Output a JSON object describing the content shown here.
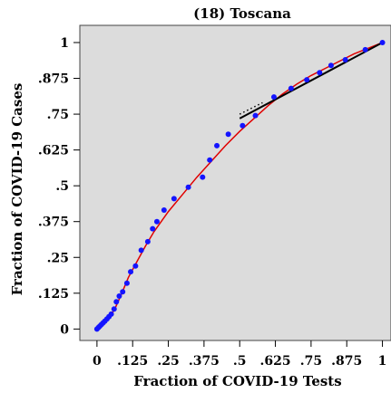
{
  "chart_data": {
    "type": "scatter",
    "title": "(18) Toscana",
    "xlabel": "Fraction of COVID-19 Tests",
    "ylabel": "Fraction of COVID-19 Cases",
    "xlim": [
      -0.06,
      1.03
    ],
    "ylim": [
      -0.04,
      1.06
    ],
    "x_ticks": [
      {
        "value": 0,
        "label": "0"
      },
      {
        "value": 0.125,
        "label": ".125"
      },
      {
        "value": 0.25,
        "label": ".25"
      },
      {
        "value": 0.375,
        "label": ".375"
      },
      {
        "value": 0.5,
        "label": ".5"
      },
      {
        "value": 0.625,
        "label": ".625"
      },
      {
        "value": 0.75,
        "label": ".75"
      },
      {
        "value": 0.875,
        "label": ".875"
      },
      {
        "value": 1,
        "label": "1"
      }
    ],
    "y_ticks": [
      {
        "value": 0,
        "label": "0"
      },
      {
        "value": 0.125,
        "label": ".125"
      },
      {
        "value": 0.25,
        "label": ".25"
      },
      {
        "value": 0.375,
        "label": ".375"
      },
      {
        "value": 0.5,
        "label": ".5"
      },
      {
        "value": 0.625,
        "label": ".625"
      },
      {
        "value": 0.75,
        "label": ".75"
      },
      {
        "value": 0.875,
        "label": ".875"
      },
      {
        "value": 1,
        "label": "1"
      }
    ],
    "grid": false,
    "background": "#dcdcdc",
    "points": [
      {
        "x": 0.0,
        "y": 0.0
      },
      {
        "x": 0.005,
        "y": 0.005
      },
      {
        "x": 0.01,
        "y": 0.01
      },
      {
        "x": 0.016,
        "y": 0.016
      },
      {
        "x": 0.022,
        "y": 0.022
      },
      {
        "x": 0.028,
        "y": 0.028
      },
      {
        "x": 0.035,
        "y": 0.035
      },
      {
        "x": 0.042,
        "y": 0.043
      },
      {
        "x": 0.05,
        "y": 0.052
      },
      {
        "x": 0.06,
        "y": 0.07
      },
      {
        "x": 0.068,
        "y": 0.095
      },
      {
        "x": 0.078,
        "y": 0.115
      },
      {
        "x": 0.09,
        "y": 0.13
      },
      {
        "x": 0.105,
        "y": 0.16
      },
      {
        "x": 0.118,
        "y": 0.2
      },
      {
        "x": 0.135,
        "y": 0.22
      },
      {
        "x": 0.155,
        "y": 0.275
      },
      {
        "x": 0.178,
        "y": 0.305
      },
      {
        "x": 0.195,
        "y": 0.35
      },
      {
        "x": 0.21,
        "y": 0.375
      },
      {
        "x": 0.235,
        "y": 0.415
      },
      {
        "x": 0.27,
        "y": 0.455
      },
      {
        "x": 0.32,
        "y": 0.495
      },
      {
        "x": 0.37,
        "y": 0.53
      },
      {
        "x": 0.395,
        "y": 0.59
      },
      {
        "x": 0.42,
        "y": 0.64
      },
      {
        "x": 0.46,
        "y": 0.68
      },
      {
        "x": 0.51,
        "y": 0.71
      },
      {
        "x": 0.555,
        "y": 0.745
      },
      {
        "x": 0.62,
        "y": 0.81
      },
      {
        "x": 0.68,
        "y": 0.84
      },
      {
        "x": 0.735,
        "y": 0.87
      },
      {
        "x": 0.78,
        "y": 0.895
      },
      {
        "x": 0.82,
        "y": 0.92
      },
      {
        "x": 0.87,
        "y": 0.94
      },
      {
        "x": 0.94,
        "y": 0.975
      },
      {
        "x": 1.0,
        "y": 1.0
      }
    ],
    "fit_curve": [
      [
        0.0,
        0.0
      ],
      [
        0.03,
        0.03
      ],
      [
        0.06,
        0.065
      ],
      [
        0.085,
        0.12
      ],
      [
        0.11,
        0.18
      ],
      [
        0.14,
        0.235
      ],
      [
        0.17,
        0.29
      ],
      [
        0.2,
        0.34
      ],
      [
        0.25,
        0.41
      ],
      [
        0.3,
        0.47
      ],
      [
        0.35,
        0.53
      ],
      [
        0.4,
        0.585
      ],
      [
        0.45,
        0.64
      ],
      [
        0.5,
        0.69
      ],
      [
        0.55,
        0.735
      ],
      [
        0.6,
        0.78
      ],
      [
        0.65,
        0.82
      ],
      [
        0.7,
        0.855
      ],
      [
        0.75,
        0.885
      ],
      [
        0.8,
        0.91
      ],
      [
        0.85,
        0.935
      ],
      [
        0.9,
        0.96
      ],
      [
        0.95,
        0.98
      ],
      [
        1.0,
        1.0
      ]
    ],
    "trend_line": {
      "x1": 0.5,
      "y1": 0.735,
      "x2": 1.0,
      "y2": 1.0
    },
    "trend_dotted": {
      "x1": 0.5,
      "y1": 0.75,
      "x2": 0.58,
      "y2": 0.79
    },
    "colors": {
      "points": "#1414ff",
      "fit": "#e00000",
      "trend": "#000000"
    }
  }
}
